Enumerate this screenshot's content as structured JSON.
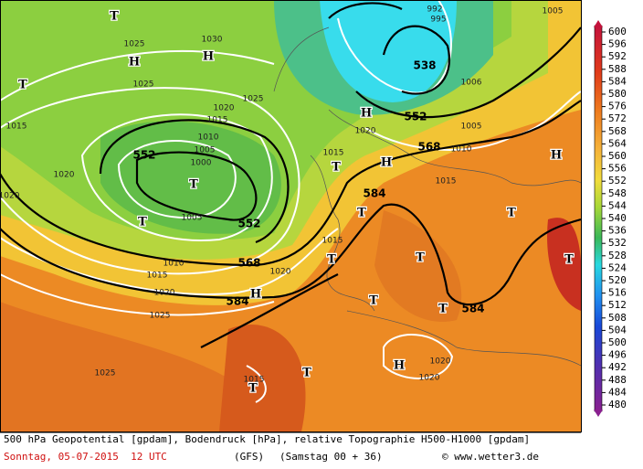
{
  "map": {
    "labels": [
      "T",
      "H",
      "H",
      "T",
      "T",
      "T",
      "H",
      "T",
      "H",
      "T",
      "T",
      "T",
      "T",
      "H",
      "T",
      "T",
      "H",
      "T",
      "T",
      "H",
      "T",
      "552",
      "552",
      "568",
      "584",
      "538",
      "552",
      "568",
      "584",
      "584",
      "1025",
      "1030",
      "1025",
      "1025",
      "1020",
      "1015",
      "1010",
      "1005",
      "1000",
      "1005",
      "1015",
      "1020",
      "1020",
      "1010",
      "1015",
      "1020",
      "1025",
      "1025",
      "1015",
      "1020",
      "1015",
      "1020",
      "1015",
      "1005",
      "1010",
      "1015",
      "1005",
      "1020",
      "1020",
      "1006",
      "995",
      "992"
    ]
  },
  "legend": {
    "ticks": [
      600,
      596,
      592,
      588,
      584,
      580,
      576,
      572,
      568,
      564,
      560,
      556,
      552,
      548,
      544,
      540,
      536,
      532,
      528,
      524,
      520,
      516,
      512,
      508,
      504,
      500,
      496,
      492,
      488,
      484,
      480
    ]
  },
  "footer": {
    "title": "500 hPa Geopotential [gpdam], Bodendruck [hPa], relative Topographie H500-H1000 [gpdam]",
    "date": "Sonntag, 05-07-2015  12 UTC",
    "model": "(GFS)",
    "run": "(Samstag 00 + 36)",
    "credit": "© www.wetter3.de"
  }
}
